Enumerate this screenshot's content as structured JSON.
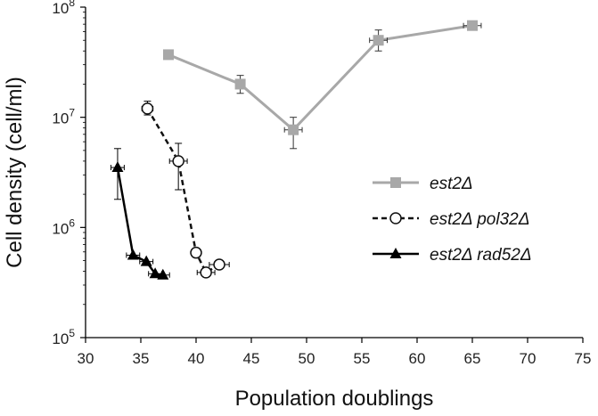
{
  "chart_data": {
    "type": "scatter",
    "title": "",
    "xlabel": "Population doublings",
    "ylabel": "Cell density (cell/ml)",
    "xlim": [
      30,
      75
    ],
    "ylim": [
      100000,
      100000000
    ],
    "y_scale": "log",
    "x_ticks": [
      "30",
      "35",
      "40",
      "45",
      "50",
      "55",
      "60",
      "65",
      "70",
      "75"
    ],
    "y_ticks": [
      {
        "value": 100000,
        "base": "10",
        "exp": "5"
      },
      {
        "value": 1000000,
        "base": "10",
        "exp": "6"
      },
      {
        "value": 10000000,
        "base": "10",
        "exp": "7"
      },
      {
        "value": 100000000,
        "base": "10",
        "exp": "8"
      }
    ],
    "grid": false,
    "legend_position": "right",
    "series": [
      {
        "name": "est2Δ",
        "color": "#a8a8a8",
        "marker": "square",
        "line": "solid",
        "points": [
          {
            "x": 37.5,
            "y": 37000000,
            "xerr": 0,
            "ylow": 37000000,
            "yhigh": 37000000
          },
          {
            "x": 44.0,
            "y": 20000000,
            "xerr": 0.4,
            "ylow": 16500000,
            "yhigh": 24000000
          },
          {
            "x": 48.8,
            "y": 7700000,
            "xerr": 0.8,
            "ylow": 5200000,
            "yhigh": 10000000
          },
          {
            "x": 56.5,
            "y": 50000000,
            "xerr": 0.8,
            "ylow": 40000000,
            "yhigh": 62000000
          },
          {
            "x": 65.0,
            "y": 68000000,
            "xerr": 0.8,
            "ylow": 68000000,
            "yhigh": 68000000
          }
        ]
      },
      {
        "name": "est2Δ pol32Δ",
        "color": "#111111",
        "marker": "circle-open",
        "line": "dashed",
        "points": [
          {
            "x": 35.6,
            "y": 12000000,
            "xerr": 0.5,
            "ylow": 10500000,
            "yhigh": 14000000
          },
          {
            "x": 38.4,
            "y": 4000000,
            "xerr": 0.8,
            "ylow": 2200000,
            "yhigh": 5800000
          },
          {
            "x": 40.0,
            "y": 590000,
            "xerr": 0,
            "ylow": 590000,
            "yhigh": 590000
          },
          {
            "x": 40.9,
            "y": 390000,
            "xerr": 0.8,
            "ylow": 390000,
            "yhigh": 390000
          },
          {
            "x": 42.1,
            "y": 460000,
            "xerr": 0.9,
            "ylow": 460000,
            "yhigh": 460000
          }
        ]
      },
      {
        "name": "est2Δ rad52Δ",
        "color": "#000000",
        "marker": "triangle",
        "line": "solid",
        "points": [
          {
            "x": 32.9,
            "y": 3500000,
            "xerr": 0.6,
            "ylow": 1800000,
            "yhigh": 5200000
          },
          {
            "x": 34.3,
            "y": 560000,
            "xerr": 0.6,
            "ylow": 560000,
            "yhigh": 560000
          },
          {
            "x": 35.5,
            "y": 490000,
            "xerr": 0.6,
            "ylow": 490000,
            "yhigh": 490000
          },
          {
            "x": 36.3,
            "y": 380000,
            "xerr": 0.6,
            "ylow": 380000,
            "yhigh": 380000
          },
          {
            "x": 37.0,
            "y": 370000,
            "xerr": 0.6,
            "ylow": 370000,
            "yhigh": 370000
          }
        ]
      }
    ]
  }
}
